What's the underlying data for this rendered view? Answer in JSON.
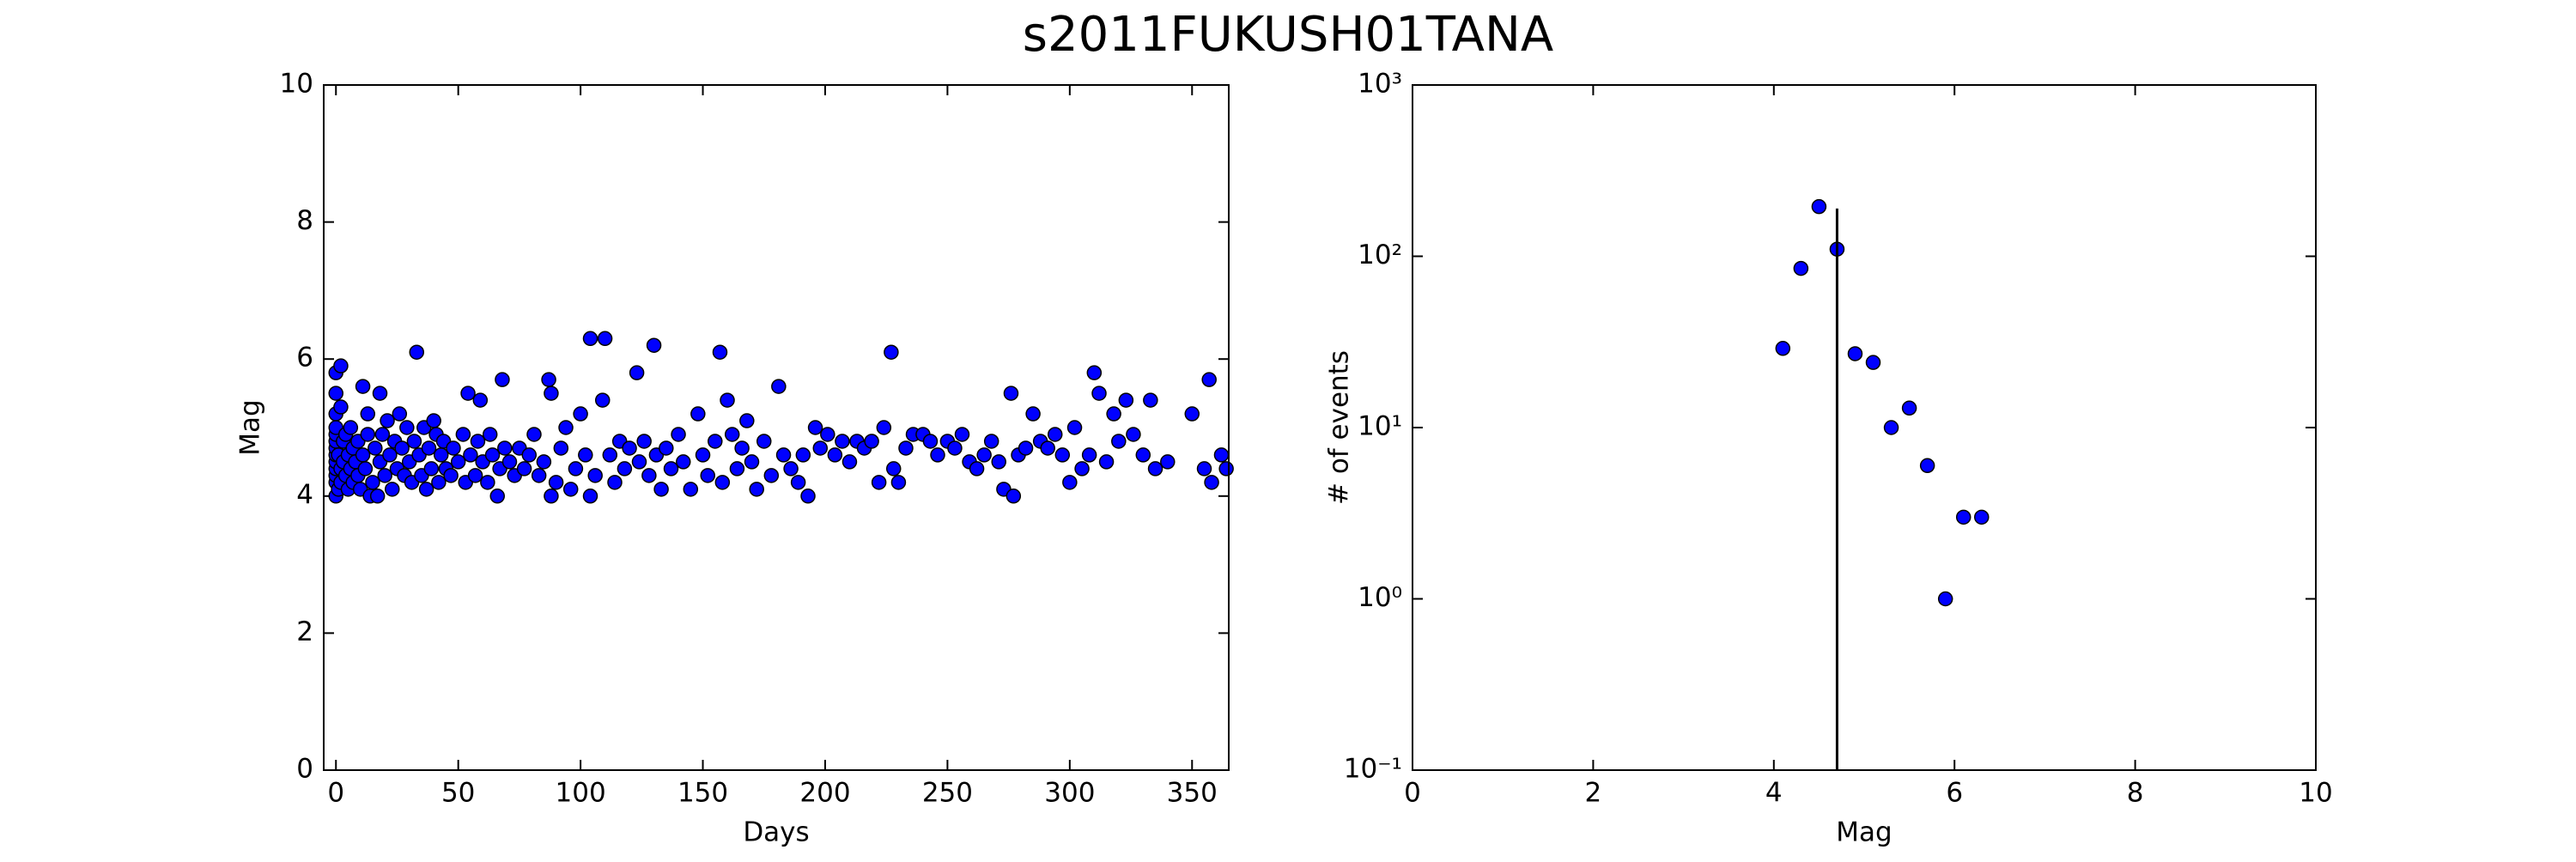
{
  "title": "s2011FUKUSH01TANA",
  "chart_data": [
    {
      "type": "scatter",
      "xlabel": "Days",
      "ylabel": "Mag",
      "color": "#0000ff",
      "xlim": [
        -5,
        365
      ],
      "ylim": [
        0,
        10
      ],
      "xticks": [
        0,
        50,
        100,
        150,
        200,
        250,
        300,
        350
      ],
      "yticks": [
        0,
        2,
        4,
        6,
        8,
        10
      ],
      "x": [
        0,
        0,
        0,
        0,
        0,
        0,
        0,
        0,
        0,
        0,
        0,
        0,
        0,
        2,
        2,
        1,
        1,
        2,
        2,
        3,
        3,
        4,
        4,
        5,
        5,
        6,
        6,
        7,
        7,
        8,
        9,
        9,
        10,
        11,
        11,
        12,
        13,
        13,
        14,
        15,
        16,
        17,
        18,
        18,
        19,
        20,
        21,
        22,
        23,
        24,
        25,
        26,
        27,
        28,
        29,
        30,
        31,
        32,
        33,
        34,
        35,
        36,
        37,
        38,
        39,
        40,
        41,
        42,
        43,
        44,
        45,
        47,
        48,
        50,
        52,
        53,
        54,
        55,
        57,
        58,
        59,
        60,
        62,
        63,
        64,
        66,
        67,
        68,
        69,
        71,
        73,
        75,
        77,
        79,
        81,
        83,
        85,
        87,
        88,
        88,
        90,
        92,
        94,
        96,
        98,
        100,
        102,
        104,
        104,
        106,
        109,
        110,
        112,
        114,
        116,
        118,
        120,
        123,
        124,
        126,
        128,
        130,
        131,
        133,
        135,
        137,
        140,
        142,
        145,
        148,
        150,
        152,
        155,
        157,
        158,
        160,
        162,
        164,
        166,
        168,
        170,
        172,
        175,
        178,
        181,
        183,
        186,
        189,
        191,
        193,
        196,
        198,
        201,
        204,
        207,
        210,
        213,
        216,
        219,
        222,
        224,
        227,
        228,
        230,
        233,
        236,
        240,
        243,
        246,
        250,
        253,
        256,
        259,
        262,
        265,
        268,
        271,
        273,
        276,
        277,
        279,
        282,
        285,
        288,
        291,
        294,
        297,
        300,
        302,
        305,
        308,
        310,
        312,
        315,
        318,
        320,
        323,
        326,
        330,
        333,
        335,
        340,
        350,
        355,
        357,
        358,
        362,
        364
      ],
      "values": [
        4.0,
        4.2,
        4.3,
        4.4,
        4.5,
        4.6,
        4.7,
        4.8,
        4.9,
        5.0,
        5.2,
        5.5,
        5.8,
        5.9,
        5.3,
        4.1,
        4.6,
        4.2,
        4.4,
        4.8,
        4.5,
        4.3,
        4.9,
        4.1,
        4.6,
        4.4,
        5.0,
        4.7,
        4.2,
        4.5,
        4.8,
        4.3,
        4.1,
        5.6,
        4.6,
        4.4,
        5.2,
        4.9,
        4.0,
        4.2,
        4.7,
        4.0,
        5.5,
        4.5,
        4.9,
        4.3,
        5.1,
        4.6,
        4.1,
        4.8,
        4.4,
        5.2,
        4.7,
        4.3,
        5.0,
        4.5,
        4.2,
        4.8,
        6.1,
        4.6,
        4.3,
        5.0,
        4.1,
        4.7,
        4.4,
        5.1,
        4.9,
        4.2,
        4.6,
        4.8,
        4.4,
        4.3,
        4.7,
        4.5,
        4.9,
        4.2,
        5.5,
        4.6,
        4.3,
        4.8,
        5.4,
        4.5,
        4.2,
        4.9,
        4.6,
        4.0,
        4.4,
        5.7,
        4.7,
        4.5,
        4.3,
        4.7,
        4.4,
        4.6,
        4.9,
        4.3,
        4.5,
        5.7,
        5.5,
        4.0,
        4.2,
        4.7,
        5.0,
        4.1,
        4.4,
        5.2,
        4.6,
        6.3,
        4.0,
        4.3,
        5.4,
        6.3,
        4.6,
        4.2,
        4.8,
        4.4,
        4.7,
        5.8,
        4.5,
        4.8,
        4.3,
        6.2,
        4.6,
        4.1,
        4.7,
        4.4,
        4.9,
        4.5,
        4.1,
        5.2,
        4.6,
        4.3,
        4.8,
        6.1,
        4.2,
        5.4,
        4.9,
        4.4,
        4.7,
        5.1,
        4.5,
        4.1,
        4.8,
        4.3,
        5.6,
        4.6,
        4.4,
        4.2,
        4.6,
        4.0,
        5.0,
        4.7,
        4.9,
        4.6,
        4.8,
        4.5,
        4.8,
        4.7,
        4.8,
        4.2,
        5.0,
        6.1,
        4.4,
        4.2,
        4.7,
        4.9,
        4.9,
        4.8,
        4.6,
        4.8,
        4.7,
        4.9,
        4.5,
        4.4,
        4.6,
        4.8,
        4.5,
        4.1,
        5.5,
        4.0,
        4.6,
        4.7,
        5.2,
        4.8,
        4.7,
        4.9,
        4.6,
        4.2,
        5.0,
        4.4,
        4.6,
        5.8,
        5.5,
        4.5,
        5.2,
        4.8,
        5.4,
        4.9,
        4.6,
        5.4,
        4.4,
        4.5,
        5.2,
        4.4,
        5.7,
        4.2,
        4.6,
        4.4
      ]
    },
    {
      "type": "scatter",
      "xlabel": "Mag",
      "ylabel": "# of events",
      "color": "#0000ff",
      "log_y": true,
      "xlim": [
        0,
        10
      ],
      "ylim": [
        0.1,
        1000
      ],
      "xticks": [
        0,
        2,
        4,
        6,
        8,
        10
      ],
      "yticks": [
        {
          "value": 0.1,
          "label": "10⁻¹"
        },
        {
          "value": 1,
          "label": "10⁰"
        },
        {
          "value": 10,
          "label": "10¹"
        },
        {
          "value": 100,
          "label": "10²"
        },
        {
          "value": 1000,
          "label": "10³"
        }
      ],
      "x": [
        4.1,
        4.3,
        4.5,
        4.7,
        4.9,
        5.1,
        5.3,
        5.5,
        5.7,
        5.9,
        6.1,
        6.3
      ],
      "values": [
        29,
        85,
        195,
        110,
        27,
        24,
        10,
        13,
        6,
        1,
        3,
        3
      ],
      "vline": {
        "x": 4.7,
        "ymax": 190
      }
    }
  ]
}
